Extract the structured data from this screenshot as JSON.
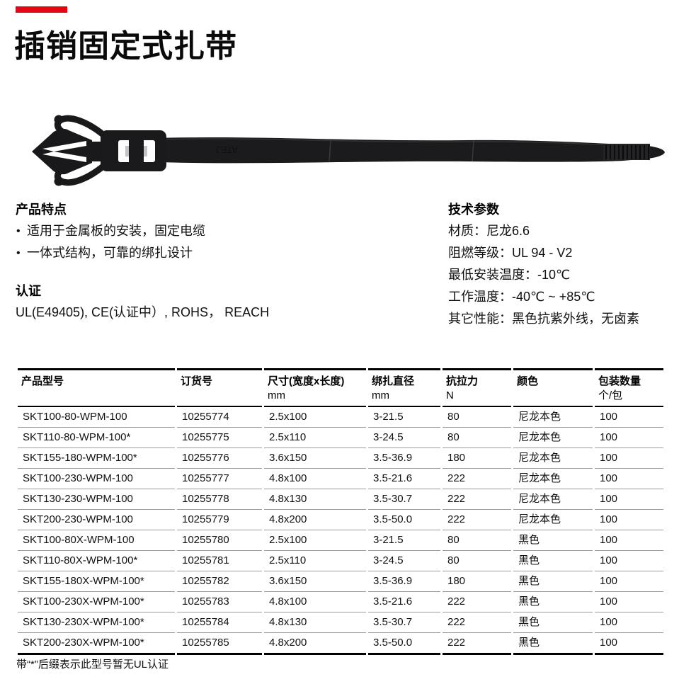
{
  "brand": {
    "bar_color": "#e30613"
  },
  "page": {
    "title": "插销固定式扎带"
  },
  "product_image": {
    "name": "push-mount-cable-tie",
    "marking": "ATEJ",
    "body_color": "#1b1b1d"
  },
  "features": {
    "heading": "产品特点",
    "items": [
      "适用于金属板的安装，固定电缆",
      "一体式结构，可靠的绑扎设计"
    ]
  },
  "certification": {
    "heading": "认证",
    "text": "UL(E49405), CE(认证中）, ROHS， REACH"
  },
  "tech_params": {
    "heading": "技术参数",
    "items": [
      "材质：尼龙6.6",
      "阻燃等级：UL 94 - V2",
      "最低安装温度：-10℃",
      "工作温度：-40℃ ~ +85℃",
      "其它性能：黑色抗紫外线，无卤素"
    ]
  },
  "table": {
    "columns": [
      {
        "label": "产品型号",
        "unit": ""
      },
      {
        "label": "订货号",
        "unit": ""
      },
      {
        "label": "尺寸(宽度x长度)",
        "unit": "mm"
      },
      {
        "label": "绑扎直径",
        "unit": "mm"
      },
      {
        "label": "抗拉力",
        "unit": "N"
      },
      {
        "label": "颜色",
        "unit": ""
      },
      {
        "label": "包装数量",
        "unit": "个/包"
      }
    ],
    "rows": [
      [
        "SKT100-80-WPM-100",
        "10255774",
        "2.5x100",
        "3-21.5",
        "80",
        "尼龙本色",
        "100"
      ],
      [
        "SKT110-80-WPM-100*",
        "10255775",
        "2.5x110",
        "3-24.5",
        "80",
        "尼龙本色",
        "100"
      ],
      [
        "SKT155-180-WPM-100*",
        "10255776",
        "3.6x150",
        "3.5-36.9",
        "180",
        "尼龙本色",
        "100"
      ],
      [
        "SKT100-230-WPM-100",
        "10255777",
        "4.8x100",
        "3.5-21.6",
        "222",
        "尼龙本色",
        "100"
      ],
      [
        "SKT130-230-WPM-100",
        "10255778",
        "4.8x130",
        "3.5-30.7",
        "222",
        "尼龙本色",
        "100"
      ],
      [
        "SKT200-230-WPM-100",
        "10255779",
        "4.8x200",
        "3.5-50.0",
        "222",
        "尼龙本色",
        "100"
      ],
      [
        "SKT100-80X-WPM-100",
        "10255780",
        "2.5x100",
        "3-21.5",
        "80",
        "黑色",
        "100"
      ],
      [
        "SKT110-80X-WPM-100*",
        "10255781",
        "2.5x110",
        "3-24.5",
        "80",
        "黑色",
        "100"
      ],
      [
        "SKT155-180X-WPM-100*",
        "10255782",
        "3.6x150",
        "3.5-36.9",
        "180",
        "黑色",
        "100"
      ],
      [
        "SKT100-230X-WPM-100*",
        "10255783",
        "4.8x100",
        "3.5-21.6",
        "222",
        "黑色",
        "100"
      ],
      [
        "SKT130-230X-WPM-100*",
        "10255784",
        "4.8x130",
        "3.5-30.7",
        "222",
        "黑色",
        "100"
      ],
      [
        "SKT200-230X-WPM-100*",
        "10255785",
        "4.8x200",
        "3.5-50.0",
        "222",
        "黑色",
        "100"
      ]
    ],
    "footnote": "带“*”后缀表示此型号暂无UL认证"
  }
}
